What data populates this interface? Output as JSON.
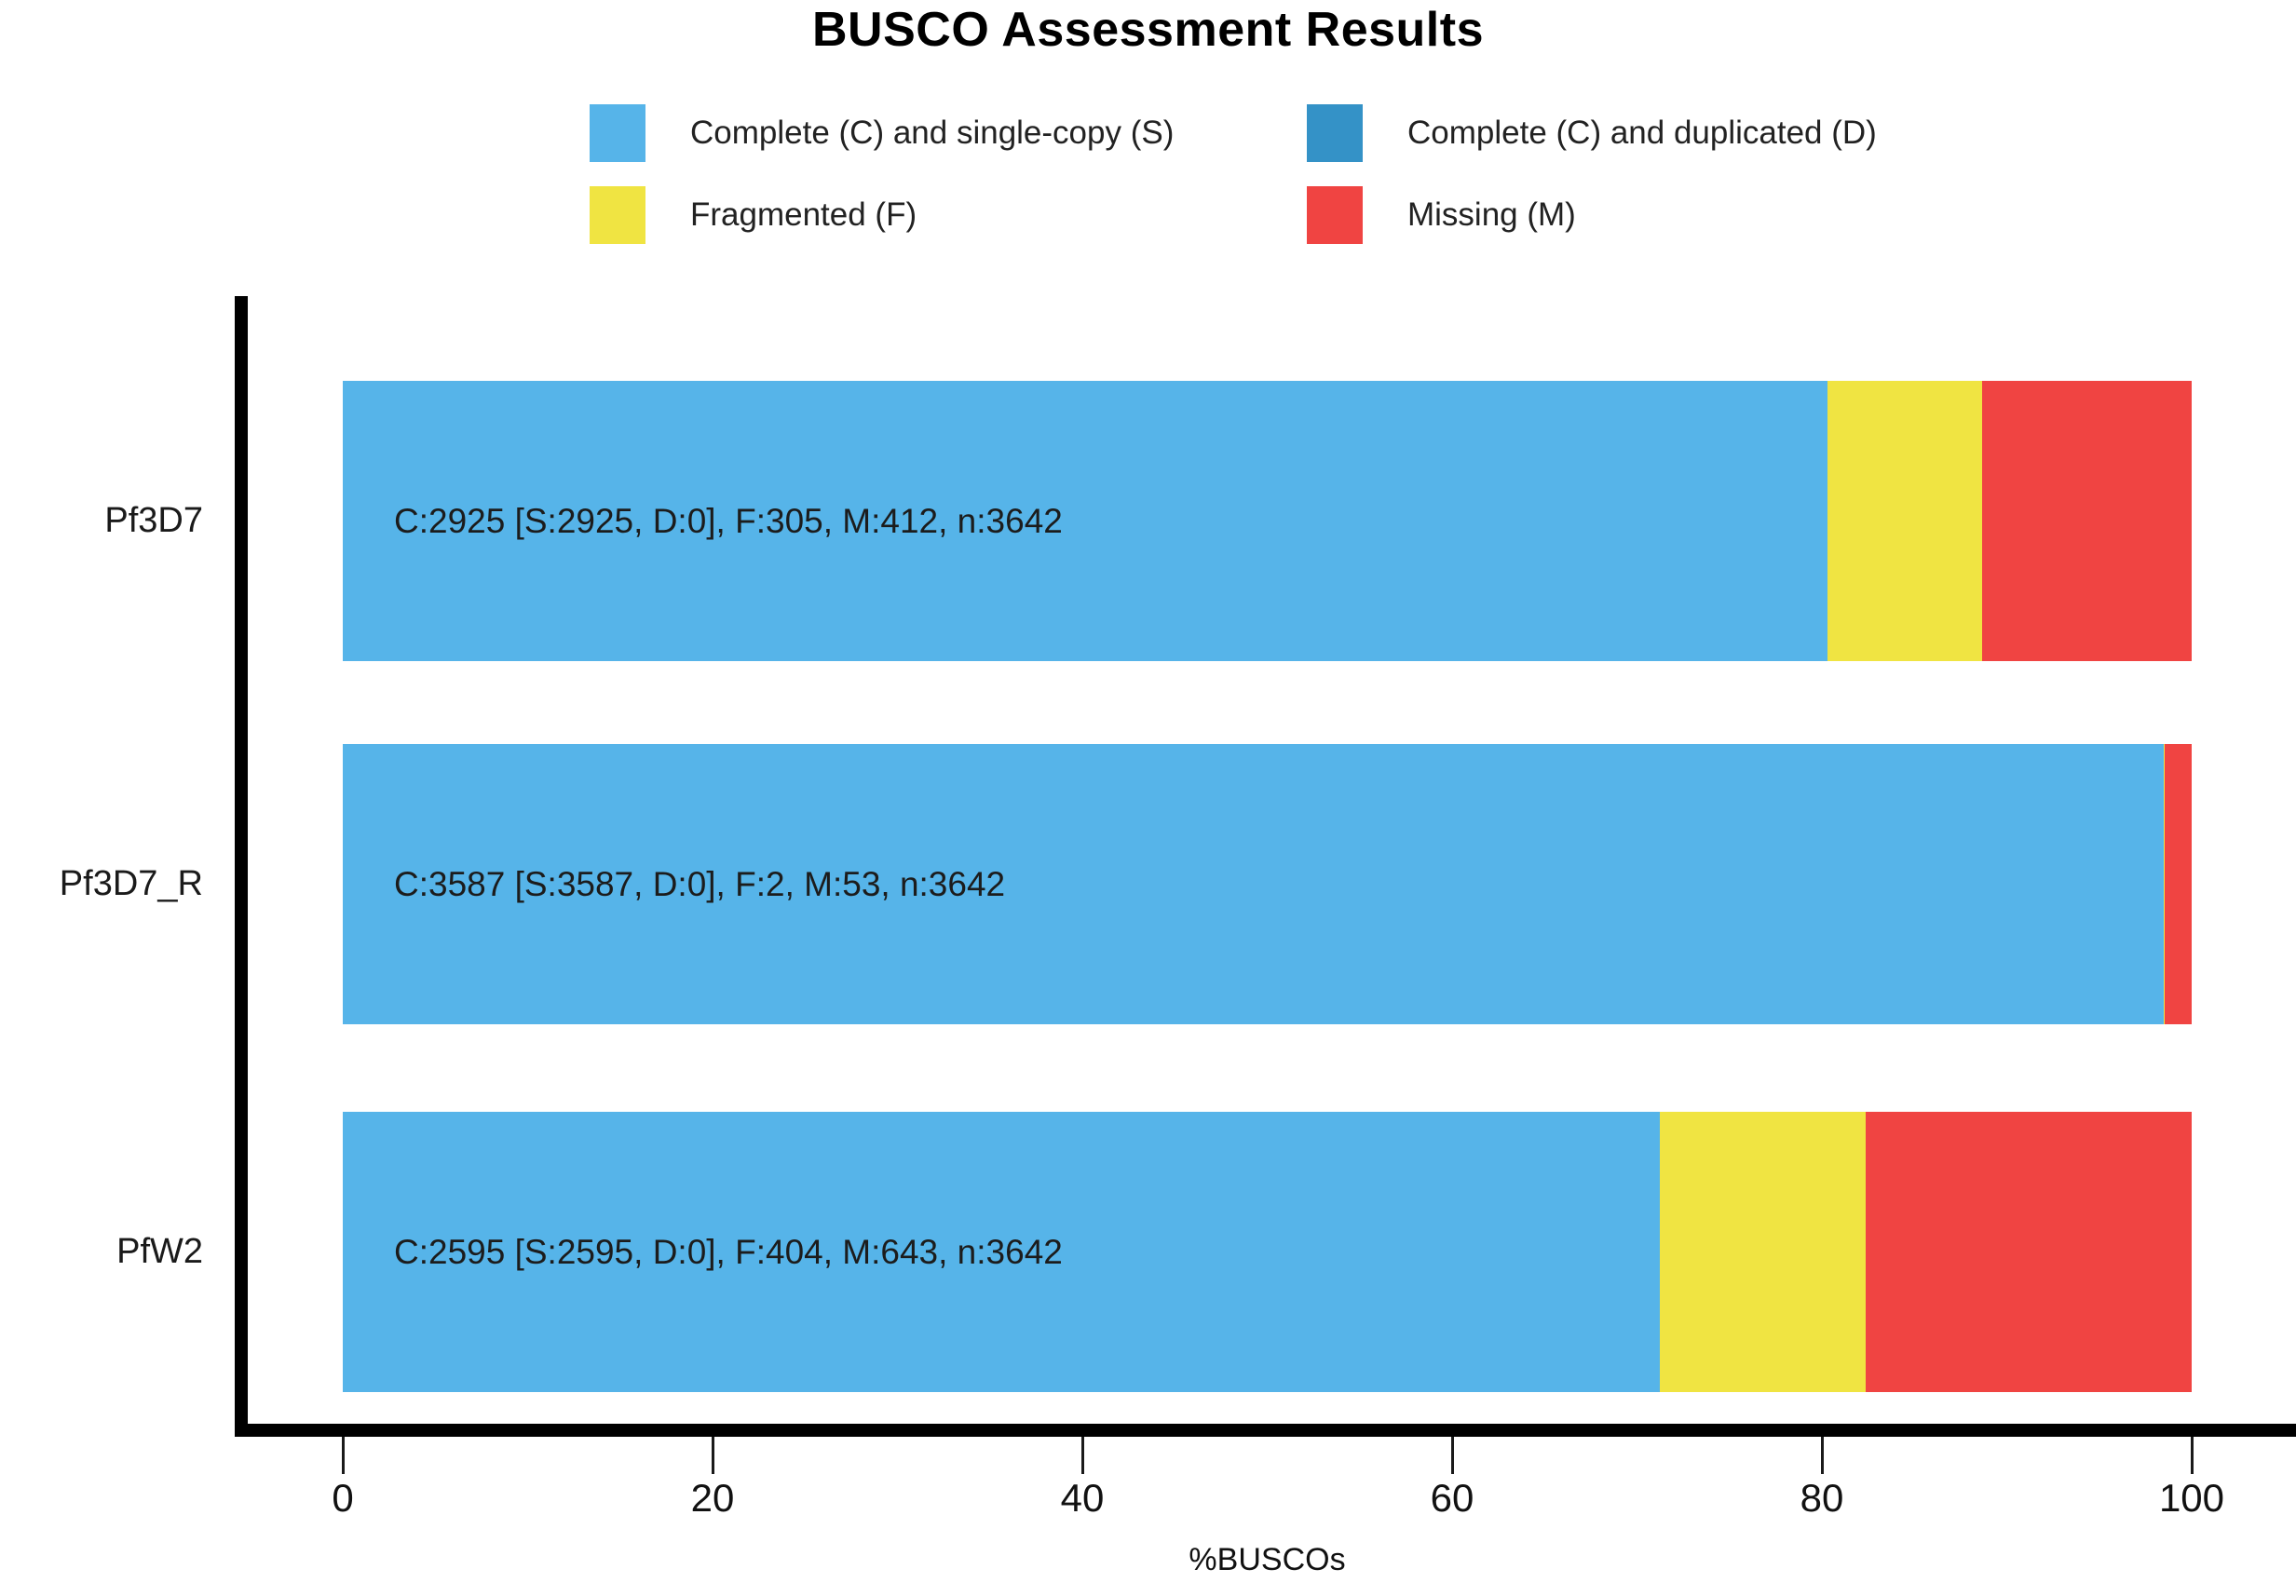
{
  "title": "BUSCO Assessment Results",
  "xlabel": "%BUSCOs",
  "colors": {
    "single_copy": "#56B4E9",
    "duplicated": "#3492C7",
    "fragmented": "#F0E442",
    "missing": "#F04442",
    "axis": "#000000"
  },
  "legend": [
    {
      "label": "Complete (C) and single-copy (S)",
      "color": "#56B4E9"
    },
    {
      "label": "Complete (C) and duplicated (D)",
      "color": "#3492C7"
    },
    {
      "label": "Fragmented (F)",
      "color": "#F0E442"
    },
    {
      "label": "Missing (M)",
      "color": "#F04442"
    }
  ],
  "chart_data": {
    "type": "bar",
    "orientation": "horizontal",
    "stacked": true,
    "title": "BUSCO Assessment Results",
    "xlabel": "%BUSCOs",
    "xlim": [
      0,
      100
    ],
    "xticks": [
      0,
      20,
      40,
      60,
      80,
      100
    ],
    "grid": false,
    "legend_position": "top",
    "categories": [
      "Pf3D7",
      "Pf3D7_R",
      "PfW2"
    ],
    "n": 3642,
    "series": [
      {
        "name": "Complete (C) and single-copy (S)",
        "color": "#56B4E9",
        "values": [
          2925,
          3587,
          2595
        ]
      },
      {
        "name": "Complete (C) and duplicated (D)",
        "color": "#3492C7",
        "values": [
          0,
          0,
          0
        ]
      },
      {
        "name": "Fragmented (F)",
        "color": "#F0E442",
        "values": [
          305,
          2,
          404
        ]
      },
      {
        "name": "Missing (M)",
        "color": "#F04442",
        "values": [
          412,
          53,
          643
        ]
      }
    ],
    "percentages": [
      {
        "category": "Pf3D7",
        "S": 80.3,
        "D": 0.0,
        "F": 8.4,
        "M": 11.3
      },
      {
        "category": "Pf3D7_R",
        "S": 98.5,
        "D": 0.0,
        "F": 0.1,
        "M": 1.5
      },
      {
        "category": "PfW2",
        "S": 71.3,
        "D": 0.0,
        "F": 11.1,
        "M": 17.7
      }
    ],
    "bar_labels": [
      "C:2925 [S:2925, D:0], F:305, M:412, n:3642",
      "C:3587 [S:3587, D:0], F:2, M:53, n:3642",
      "C:2595 [S:2595, D:0], F:404, M:643, n:3642"
    ]
  }
}
